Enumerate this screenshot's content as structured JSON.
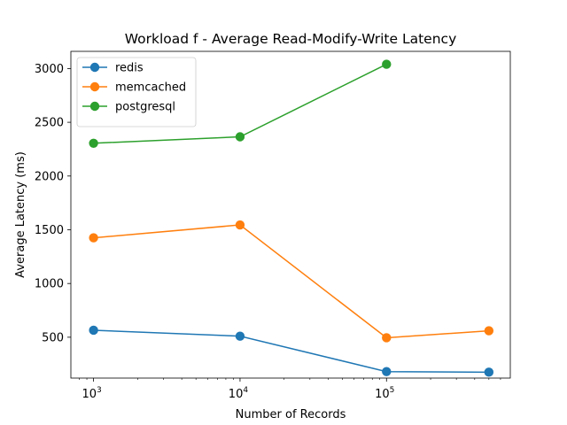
{
  "chart_data": {
    "type": "line",
    "title": "Workload f - Average Read-Modify-Write Latency",
    "xlabel": "Number of Records",
    "ylabel": "Average Latency (ms)",
    "xscale": "log",
    "xlim": [
      700,
      700000
    ],
    "ylim": [
      120,
      3160
    ],
    "xticks": [
      {
        "value": 1000,
        "base": "10",
        "exp": "3"
      },
      {
        "value": 10000,
        "base": "10",
        "exp": "4"
      },
      {
        "value": 100000,
        "base": "10",
        "exp": "5"
      }
    ],
    "yticks": [
      {
        "value": 500,
        "label": "500"
      },
      {
        "value": 1000,
        "label": "1000"
      },
      {
        "value": 1500,
        "label": "1500"
      },
      {
        "value": 2000,
        "label": "2000"
      },
      {
        "value": 2500,
        "label": "2500"
      },
      {
        "value": 3000,
        "label": "3000"
      }
    ],
    "grid": false,
    "legend_position": "top-left",
    "series": [
      {
        "name": "redis",
        "color": "#1f77b4",
        "x": [
          1000,
          10000,
          100000,
          500000
        ],
        "y": [
          565,
          510,
          180,
          175
        ]
      },
      {
        "name": "memcached",
        "color": "#ff7f0e",
        "x": [
          1000,
          10000,
          100000,
          500000
        ],
        "y": [
          1425,
          1545,
          495,
          560
        ]
      },
      {
        "name": "postgresql",
        "color": "#2ca02c",
        "x": [
          1000,
          10000,
          100000
        ],
        "y": [
          2305,
          2365,
          3040
        ]
      }
    ]
  }
}
